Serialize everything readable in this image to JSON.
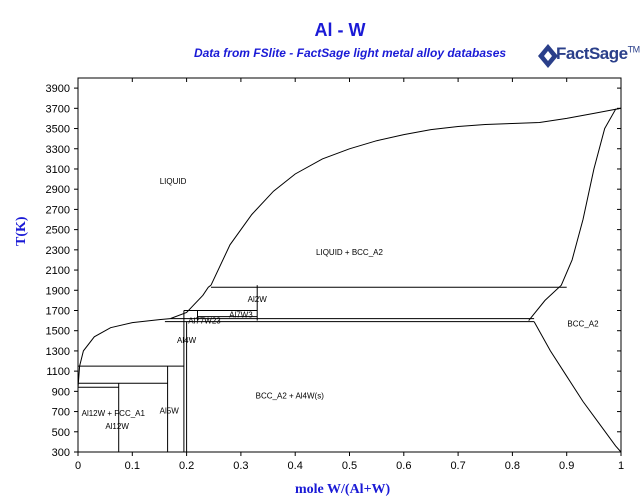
{
  "title": "Al - W",
  "subtitle": "Data from FSlite - FactSage light metal alloy databases",
  "logo": {
    "text": "FactSage",
    "sup": "TM"
  },
  "chart_data": {
    "type": "line",
    "xlabel": "mole W/(Al+W)",
    "ylabel": "T(K)",
    "xlim": [
      0,
      1
    ],
    "ylim": [
      300,
      4000
    ],
    "xticks": [
      0,
      0.1,
      0.2,
      0.3,
      0.4,
      0.5,
      0.6,
      0.7,
      0.8,
      0.9,
      1
    ],
    "yticks": [
      300,
      500,
      700,
      900,
      1100,
      1300,
      1500,
      1700,
      1900,
      2100,
      2300,
      2500,
      2700,
      2900,
      3100,
      3300,
      3500,
      3700,
      3900
    ],
    "grid": false,
    "legend": "none",
    "series": [
      {
        "points": [
          [
            0,
            933
          ],
          [
            0.003,
            1150
          ],
          [
            0.01,
            1300
          ],
          [
            0.03,
            1440
          ],
          [
            0.06,
            1530
          ],
          [
            0.1,
            1580
          ],
          [
            0.15,
            1610
          ],
          [
            0.17,
            1620
          ]
        ]
      },
      {
        "points": [
          [
            0.17,
            1620
          ],
          [
            0.2,
            1680
          ],
          [
            0.23,
            1850
          ],
          [
            0.24,
            1930
          ],
          [
            0.245,
            1950
          ]
        ]
      },
      {
        "points": [
          [
            0.245,
            1950
          ],
          [
            0.28,
            2350
          ],
          [
            0.32,
            2650
          ],
          [
            0.36,
            2880
          ],
          [
            0.4,
            3050
          ],
          [
            0.45,
            3200
          ],
          [
            0.5,
            3300
          ],
          [
            0.55,
            3380
          ],
          [
            0.6,
            3440
          ],
          [
            0.65,
            3490
          ],
          [
            0.7,
            3520
          ],
          [
            0.75,
            3540
          ],
          [
            0.8,
            3550
          ],
          [
            0.85,
            3560
          ],
          [
            0.9,
            3600
          ],
          [
            0.95,
            3650
          ],
          [
            1.0,
            3700
          ]
        ]
      },
      {
        "points": [
          [
            0.83,
            1600
          ],
          [
            0.86,
            1800
          ],
          [
            0.89,
            1950
          ],
          [
            0.91,
            2200
          ],
          [
            0.93,
            2600
          ],
          [
            0.95,
            3100
          ],
          [
            0.97,
            3500
          ],
          [
            0.99,
            3690
          ],
          [
            1.0,
            3700
          ]
        ]
      },
      {
        "points": [
          [
            0.84,
            1590
          ],
          [
            0.87,
            1300
          ],
          [
            0.9,
            1050
          ],
          [
            0.93,
            800
          ],
          [
            0.96,
            580
          ],
          [
            0.99,
            360
          ],
          [
            1.0,
            300
          ]
        ]
      },
      {
        "points": [
          [
            0.245,
            1930
          ],
          [
            0.9,
            1930
          ]
        ]
      },
      {
        "points": [
          [
            0.17,
            1620
          ],
          [
            0.84,
            1620
          ]
        ]
      },
      {
        "points": [
          [
            0.195,
            1700
          ],
          [
            0.33,
            1700
          ]
        ]
      },
      {
        "points": [
          [
            0.22,
            1640
          ],
          [
            0.33,
            1640
          ]
        ]
      },
      {
        "points": [
          [
            0.16,
            1590
          ],
          [
            0.84,
            1590
          ]
        ]
      },
      {
        "points": [
          [
            0,
            1150
          ],
          [
            0.195,
            1150
          ]
        ]
      },
      {
        "points": [
          [
            0,
            980
          ],
          [
            0.165,
            980
          ]
        ]
      },
      {
        "points": [
          [
            0,
            940
          ],
          [
            0.075,
            940
          ]
        ]
      },
      {
        "points": [
          [
            0.33,
            1950
          ],
          [
            0.33,
            1600
          ]
        ]
      },
      {
        "points": [
          [
            0.22,
            1700
          ],
          [
            0.22,
            1600
          ]
        ]
      },
      {
        "points": [
          [
            0.195,
            1700
          ],
          [
            0.195,
            300
          ]
        ]
      },
      {
        "points": [
          [
            0.2,
            1590
          ],
          [
            0.2,
            300
          ]
        ]
      },
      {
        "points": [
          [
            0.165,
            1150
          ],
          [
            0.165,
            300
          ]
        ]
      },
      {
        "points": [
          [
            0.075,
            980
          ],
          [
            0.075,
            300
          ]
        ]
      }
    ],
    "annotations": [
      {
        "text": "LIQUID",
        "x": 0.175,
        "y": 2950
      },
      {
        "text": "LIQUID + BCC_A2",
        "x": 0.5,
        "y": 2250
      },
      {
        "text": "Al2W",
        "x": 0.33,
        "y": 1785
      },
      {
        "text": "Al7W3",
        "x": 0.3,
        "y": 1630
      },
      {
        "text": "Al77W23",
        "x": 0.233,
        "y": 1570
      },
      {
        "text": "Al4W",
        "x": 0.2,
        "y": 1380
      },
      {
        "text": "BCC_A2",
        "x": 0.93,
        "y": 1540
      },
      {
        "text": "BCC_A2 + Al4W(s)",
        "x": 0.39,
        "y": 830
      },
      {
        "text": "Al5W",
        "x": 0.168,
        "y": 680
      },
      {
        "text": "Al12W + FCC_A1",
        "x": 0.065,
        "y": 655
      },
      {
        "text": "Al12W",
        "x": 0.072,
        "y": 530
      }
    ]
  }
}
